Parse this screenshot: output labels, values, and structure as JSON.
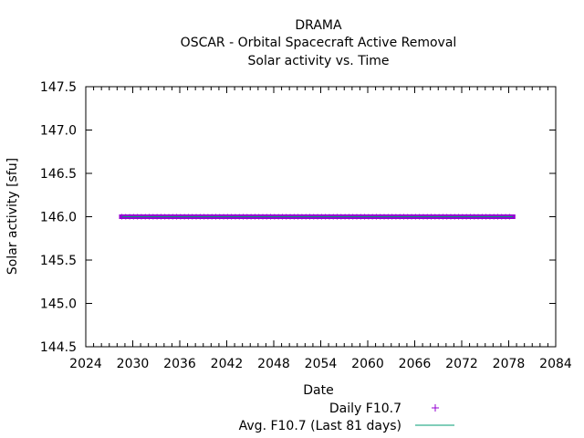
{
  "chart_data": {
    "type": "line",
    "title_lines": [
      "DRAMA",
      "OSCAR - Orbital Spacecraft Active Removal",
      "Solar activity vs. Time"
    ],
    "xlabel": "Date",
    "ylabel": "Solar activity [sfu]",
    "xlim": [
      2024,
      2084
    ],
    "ylim": [
      144.5,
      147.5
    ],
    "x_ticks": [
      "2024",
      "2030",
      "2036",
      "2042",
      "2048",
      "2054",
      "2060",
      "2066",
      "2072",
      "2078",
      "2084"
    ],
    "y_ticks": [
      "144.5",
      "145.0",
      "145.5",
      "146.0",
      "146.5",
      "147.0",
      "147.5"
    ],
    "grid": false,
    "legend_position": "bottom",
    "series": [
      {
        "name": "Daily F10.7",
        "style": "points",
        "marker": "+",
        "color": "#9400d3",
        "x_range": [
          2028.6,
          2078.5
        ],
        "value": 146.0
      },
      {
        "name": "Avg. F10.7 (Last 81 days)",
        "style": "line",
        "color": "#009e73",
        "x_range": [
          2028.6,
          2078.5
        ],
        "value": 146.0
      }
    ]
  }
}
